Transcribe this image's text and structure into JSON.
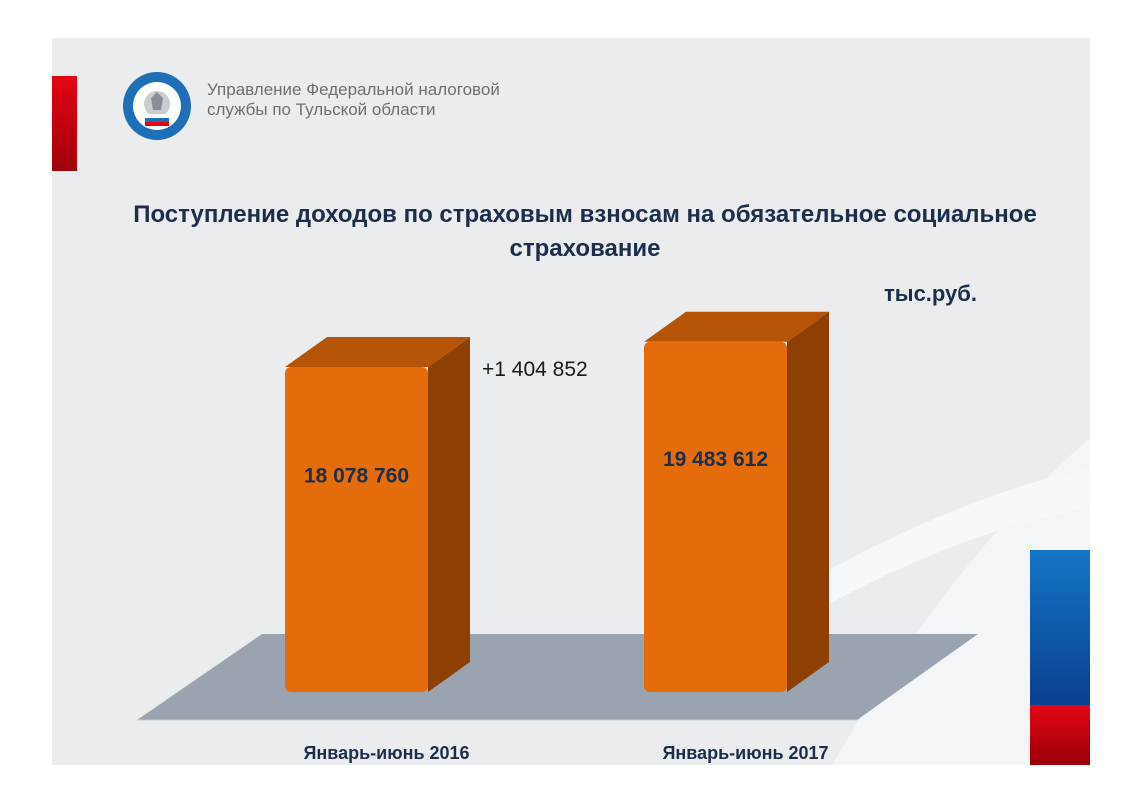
{
  "header": {
    "org_line1": "Управление Федеральной налоговой",
    "org_line2": "службы по Тульской области",
    "logo_text": "ФЕДЕРАЛЬНАЯ НАЛОГОВАЯ СЛУЖБА"
  },
  "colors": {
    "bar_front": "#e46c0a",
    "bar_top": "#b55407",
    "bar_side": "#8e3f04",
    "floor": "#9aa4b1",
    "title": "#1c2e4a",
    "flag_blue": "#0a56a8",
    "flag_red": "#e30613"
  },
  "chart_data": {
    "type": "bar",
    "title": "Поступление доходов по страховым взносам на обязательное социальное страхование",
    "unit": "тыс.руб.",
    "categories": [
      "Январь-июнь 2016",
      "Январь-июнь 2017"
    ],
    "values": [
      18078760,
      19483612
    ],
    "value_labels": [
      "18 078 760",
      "19 483 612"
    ],
    "annotation": "+1 404 852",
    "style": "3d",
    "grid": false,
    "legend": "none"
  }
}
